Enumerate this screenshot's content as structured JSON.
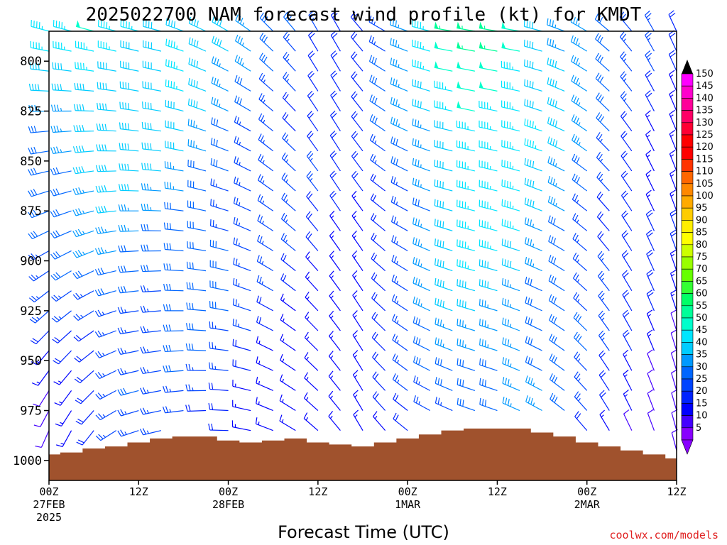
{
  "chart_data": {
    "type": "wind-barb-time-height",
    "title": "2025022700 NAM forecast wind profile (kt) for KMDT",
    "xlabel": "Forecast Time (UTC)",
    "ylabel": "",
    "credit": "coolwx.com/models",
    "y_axis": {
      "reversed": true,
      "ylim": [
        1010,
        785
      ],
      "ticks": [
        800,
        825,
        850,
        875,
        900,
        925,
        950,
        975,
        1000
      ],
      "tick_labels": [
        "800",
        "825",
        "850",
        "875",
        "900",
        "925",
        "950",
        "975",
        "1000"
      ]
    },
    "x_axis": {
      "xlim_hours": [
        0,
        84
      ],
      "ticks_hours": [
        0,
        12,
        24,
        36,
        48,
        60,
        72,
        84
      ],
      "tick_labels": [
        {
          "line1": "00Z",
          "line2": "27FEB",
          "line3": "2025"
        },
        {
          "line1": "12Z",
          "line2": "",
          "line3": ""
        },
        {
          "line1": "00Z",
          "line2": "28FEB",
          "line3": ""
        },
        {
          "line1": "12Z",
          "line2": "",
          "line3": ""
        },
        {
          "line1": "00Z",
          "line2": "1MAR",
          "line3": ""
        },
        {
          "line1": "12Z",
          "line2": "",
          "line3": ""
        },
        {
          "line1": "00Z",
          "line2": "2MAR",
          "line3": ""
        },
        {
          "line1": "12Z",
          "line2": "",
          "line3": ""
        }
      ]
    },
    "levels_hpa": [
      785,
      795,
      805,
      815,
      825,
      835,
      845,
      855,
      865,
      875,
      885,
      895,
      905,
      915,
      925,
      935,
      945,
      955,
      965,
      975,
      985,
      995
    ],
    "times_hours": [
      0,
      3,
      6,
      9,
      12,
      15,
      18,
      21,
      24,
      27,
      30,
      33,
      36,
      39,
      42,
      45,
      48,
      51,
      54,
      57,
      60,
      63,
      66,
      69,
      72,
      75,
      78,
      81,
      84
    ],
    "surface_pressure": [
      {
        "hour": 0,
        "hpa": 997
      },
      {
        "hour": 3,
        "hpa": 996
      },
      {
        "hour": 6,
        "hpa": 994
      },
      {
        "hour": 9,
        "hpa": 993
      },
      {
        "hour": 12,
        "hpa": 991
      },
      {
        "hour": 15,
        "hpa": 989
      },
      {
        "hour": 18,
        "hpa": 988
      },
      {
        "hour": 21,
        "hpa": 988
      },
      {
        "hour": 24,
        "hpa": 990
      },
      {
        "hour": 27,
        "hpa": 991
      },
      {
        "hour": 30,
        "hpa": 990
      },
      {
        "hour": 33,
        "hpa": 989
      },
      {
        "hour": 36,
        "hpa": 991
      },
      {
        "hour": 39,
        "hpa": 992
      },
      {
        "hour": 42,
        "hpa": 993
      },
      {
        "hour": 45,
        "hpa": 991
      },
      {
        "hour": 48,
        "hpa": 989
      },
      {
        "hour": 51,
        "hpa": 987
      },
      {
        "hour": 54,
        "hpa": 985
      },
      {
        "hour": 57,
        "hpa": 984
      },
      {
        "hour": 60,
        "hpa": 984
      },
      {
        "hour": 63,
        "hpa": 984
      },
      {
        "hour": 66,
        "hpa": 986
      },
      {
        "hour": 69,
        "hpa": 988
      },
      {
        "hour": 72,
        "hpa": 991
      },
      {
        "hour": 75,
        "hpa": 993
      },
      {
        "hour": 78,
        "hpa": 995
      },
      {
        "hour": 81,
        "hpa": 997
      },
      {
        "hour": 84,
        "hpa": 999
      }
    ],
    "wind_field": {
      "description_keys": [
        "hour",
        "speed_kt_at_top",
        "speed_kt_at_bottom",
        "dir_deg_top",
        "dir_deg_bottom"
      ],
      "columns": [
        [
          0,
          42,
          10,
          285,
          200
        ],
        [
          3,
          45,
          12,
          285,
          205
        ],
        [
          6,
          48,
          15,
          285,
          215
        ],
        [
          9,
          48,
          20,
          285,
          235
        ],
        [
          12,
          46,
          22,
          285,
          250
        ],
        [
          15,
          45,
          20,
          285,
          255
        ],
        [
          18,
          44,
          20,
          290,
          260
        ],
        [
          21,
          40,
          20,
          295,
          265
        ],
        [
          24,
          36,
          20,
          300,
          270
        ],
        [
          27,
          33,
          18,
          305,
          280
        ],
        [
          30,
          30,
          16,
          315,
          290
        ],
        [
          33,
          28,
          14,
          320,
          300
        ],
        [
          36,
          25,
          12,
          330,
          310
        ],
        [
          39,
          22,
          12,
          330,
          320
        ],
        [
          42,
          22,
          12,
          320,
          330
        ],
        [
          45,
          28,
          15,
          300,
          320
        ],
        [
          48,
          35,
          20,
          290,
          310
        ],
        [
          51,
          42,
          25,
          285,
          300
        ],
        [
          54,
          50,
          28,
          280,
          295
        ],
        [
          57,
          55,
          30,
          280,
          290
        ],
        [
          60,
          55,
          30,
          280,
          290
        ],
        [
          63,
          52,
          30,
          280,
          295
        ],
        [
          66,
          45,
          28,
          285,
          300
        ],
        [
          69,
          40,
          25,
          290,
          310
        ],
        [
          72,
          35,
          22,
          300,
          320
        ],
        [
          75,
          30,
          18,
          310,
          330
        ],
        [
          78,
          25,
          15,
          320,
          335
        ],
        [
          81,
          22,
          12,
          330,
          340
        ],
        [
          84,
          20,
          10,
          335,
          345
        ]
      ]
    },
    "colorbar": {
      "unit": "kt",
      "min": 5,
      "max": 150,
      "labels": [
        "150",
        "145",
        "140",
        "135",
        "130",
        "125",
        "120",
        "115",
        "110",
        "105",
        "100",
        "95",
        "90",
        "85",
        "80",
        "75",
        "70",
        "65",
        "60",
        "55",
        "50",
        "45",
        "40",
        "35",
        "30",
        "25",
        "20",
        "15",
        "10",
        "5"
      ],
      "colors": [
        "#ff00ff",
        "#ff00cc",
        "#ff0099",
        "#ff0066",
        "#ff0033",
        "#ff0000",
        "#ff0000",
        "#ff3300",
        "#ff6600",
        "#ff8800",
        "#ffaa00",
        "#ffcc00",
        "#ffee00",
        "#ffff00",
        "#ccff00",
        "#99ff00",
        "#66ff00",
        "#33ff33",
        "#00ff66",
        "#00ff99",
        "#00ffcc",
        "#00e5ff",
        "#00ccff",
        "#0099ff",
        "#0066ff",
        "#0044ff",
        "#0022ff",
        "#0000ff",
        "#4400ff",
        "#8800ff"
      ]
    },
    "colors": {
      "terrain": "#a0522d",
      "frame": "#000000",
      "credit": "#e02020"
    }
  }
}
